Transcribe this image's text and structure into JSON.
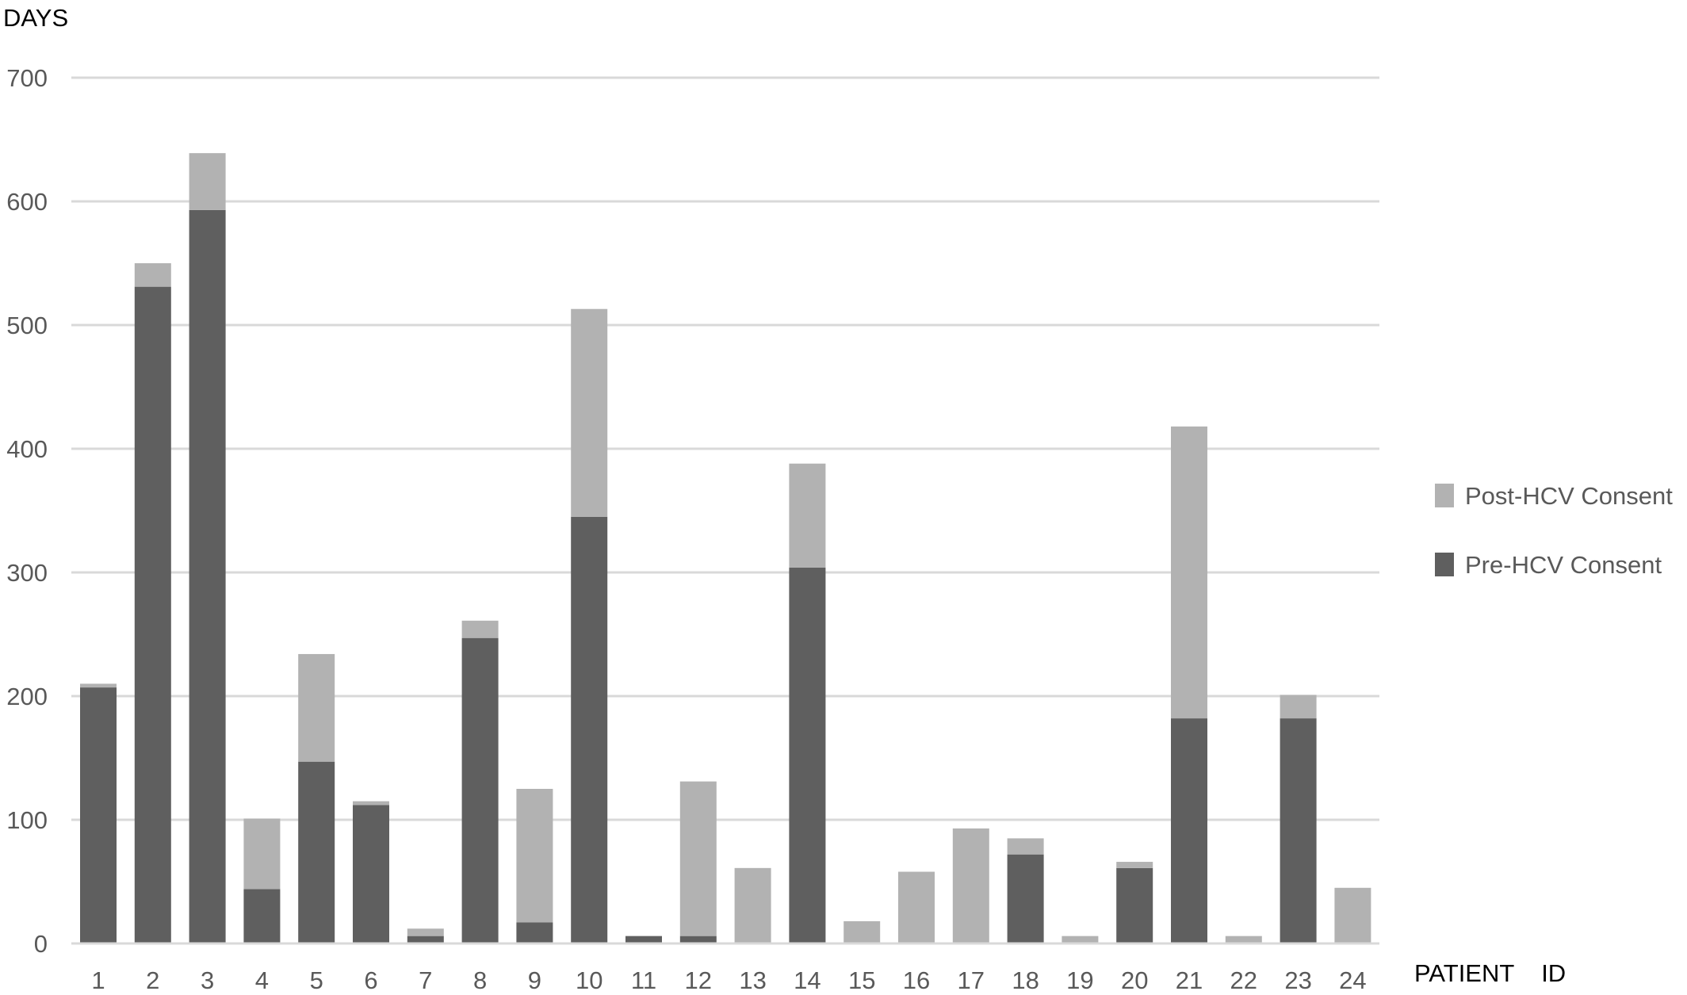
{
  "chart_data": {
    "type": "bar",
    "stacked": true,
    "title": "",
    "ylabel": "DAYS",
    "xlabel": "PATIENT    ID",
    "ylim": [
      0,
      700
    ],
    "yticks": [
      0,
      100,
      200,
      300,
      400,
      500,
      600,
      700
    ],
    "grid": true,
    "legend_position": "right",
    "categories": [
      "1",
      "2",
      "3",
      "4",
      "5",
      "6",
      "7",
      "8",
      "9",
      "10",
      "11",
      "12",
      "13",
      "14",
      "15",
      "16",
      "17",
      "18",
      "19",
      "20",
      "21",
      "22",
      "23",
      "24"
    ],
    "series": [
      {
        "name": "Pre-HCV Consent",
        "color": "#5f5f5f",
        "values": [
          207,
          531,
          593,
          44,
          147,
          112,
          6,
          247,
          17,
          345,
          6,
          6,
          0,
          304,
          0,
          0,
          0,
          72,
          0,
          61,
          182,
          0,
          182,
          0
        ]
      },
      {
        "name": "Post-HCV Consent",
        "color": "#b2b2b2",
        "values": [
          3,
          19,
          46,
          57,
          87,
          3,
          6,
          14,
          108,
          168,
          0,
          125,
          61,
          84,
          18,
          58,
          93,
          13,
          6,
          5,
          236,
          6,
          19,
          45
        ]
      }
    ],
    "legend": [
      {
        "label": "Post-HCV Consent",
        "color": "#b2b2b2"
      },
      {
        "label": "Pre-HCV Consent",
        "color": "#5f5f5f"
      }
    ]
  },
  "colors": {
    "grid": "#d9d9d9",
    "axis": "#d9d9d9",
    "tick_text": "#595959",
    "axis_title": "#000000"
  }
}
